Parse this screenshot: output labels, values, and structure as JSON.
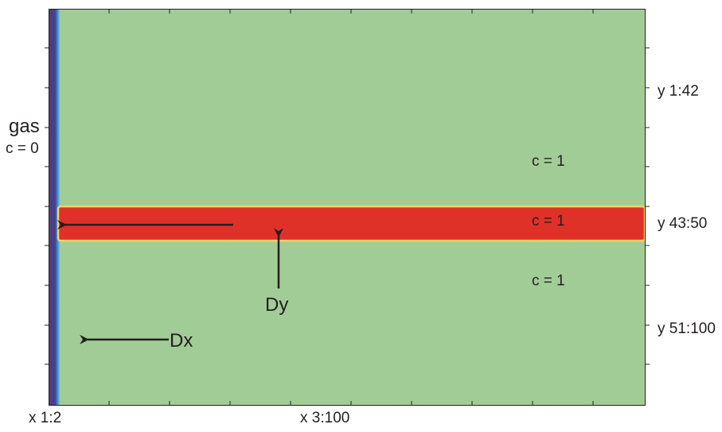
{
  "labels": {
    "gas": "gas",
    "gas_c": "c = 0",
    "c_top": "c = 1",
    "c_band": "c = 1",
    "c_bottom": "c = 1",
    "y_top": "y 1:42",
    "y_band": "y 43:50",
    "y_bottom": "y 51:100",
    "x_left": "x 1:2",
    "x_right": "x 3:100",
    "dy": "Dy",
    "dx": "Dx"
  },
  "colors": {
    "domain_fill": "#a2cc96",
    "band_fill": "#e03129",
    "band_edge": "#f1d36a",
    "gas_column": "#4b3e86",
    "gas_gradient_mid": "#2e86c8",
    "gas_gradient_edge": "#6ec6e6",
    "arrow": "#231f20",
    "frame": "#231f20"
  },
  "arrows": {
    "band_arrow": "right-to-left",
    "dy_arrow": "upward",
    "dx_arrow": "right-to-left"
  }
}
